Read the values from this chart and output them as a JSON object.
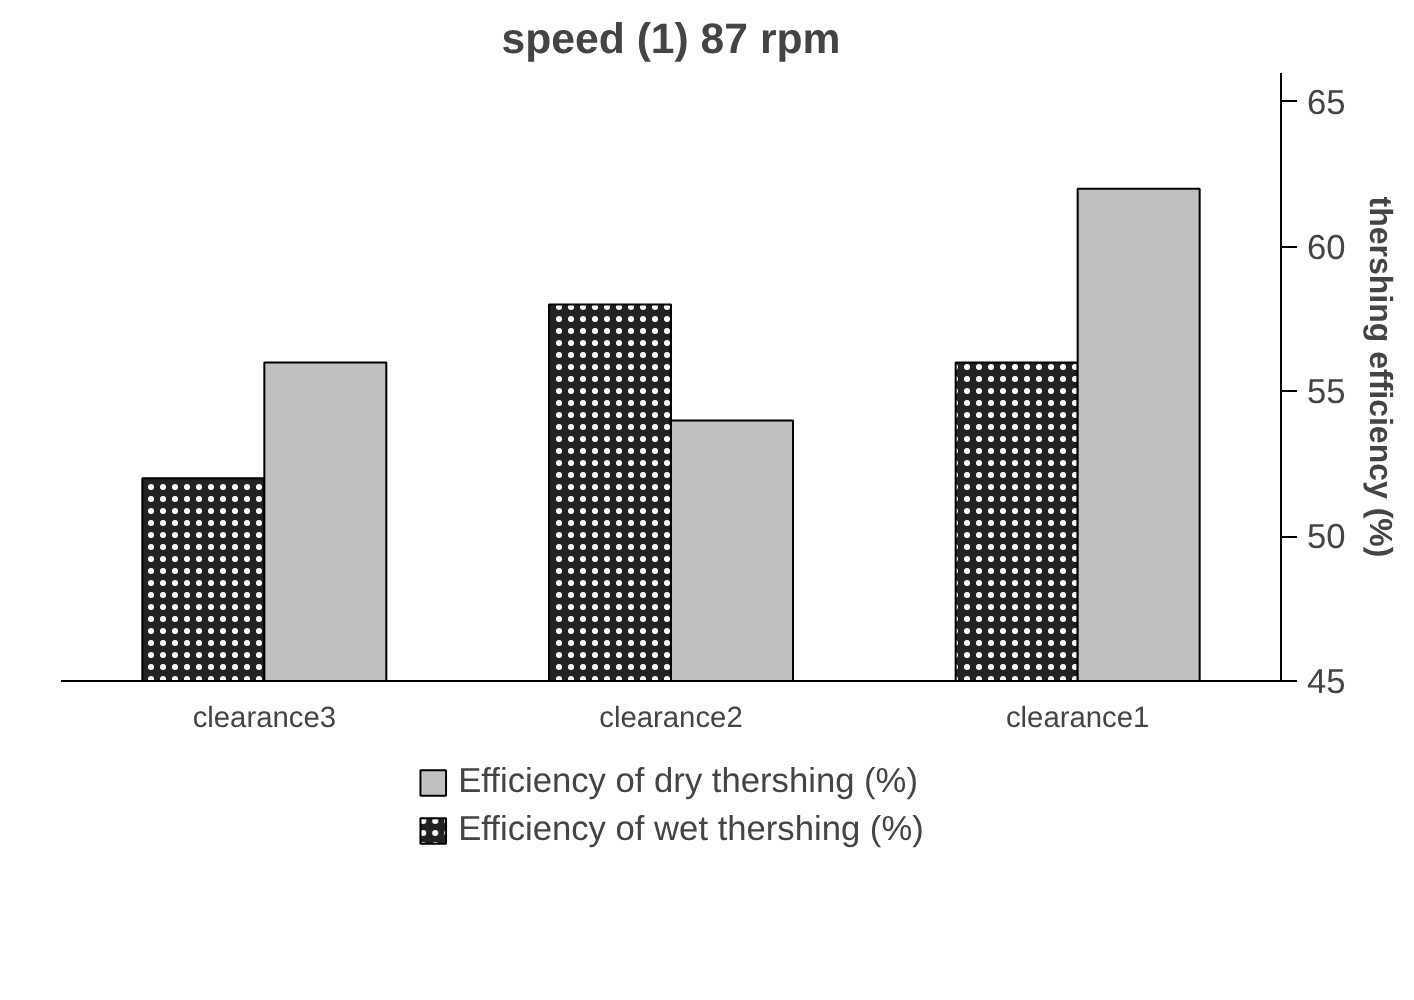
{
  "chart_data": {
    "type": "bar",
    "title": "speed (1) 87 rpm",
    "ylabel": "thershing efficiency (%)",
    "categories": [
      "clearance3",
      "clearance2",
      "clearance1"
    ],
    "series": [
      {
        "name": "Efficiency of wet thershing (%)",
        "color": "#222222",
        "values": [
          52,
          58,
          56
        ]
      },
      {
        "name": "Efficiency of dry thershing (%)",
        "color": "#c0c0c0",
        "values": [
          56,
          54,
          62
        ]
      }
    ],
    "ylim": [
      45,
      66
    ],
    "yticks": [
      45,
      50,
      55,
      60,
      65
    ],
    "grid": false,
    "legend": "bottom"
  }
}
